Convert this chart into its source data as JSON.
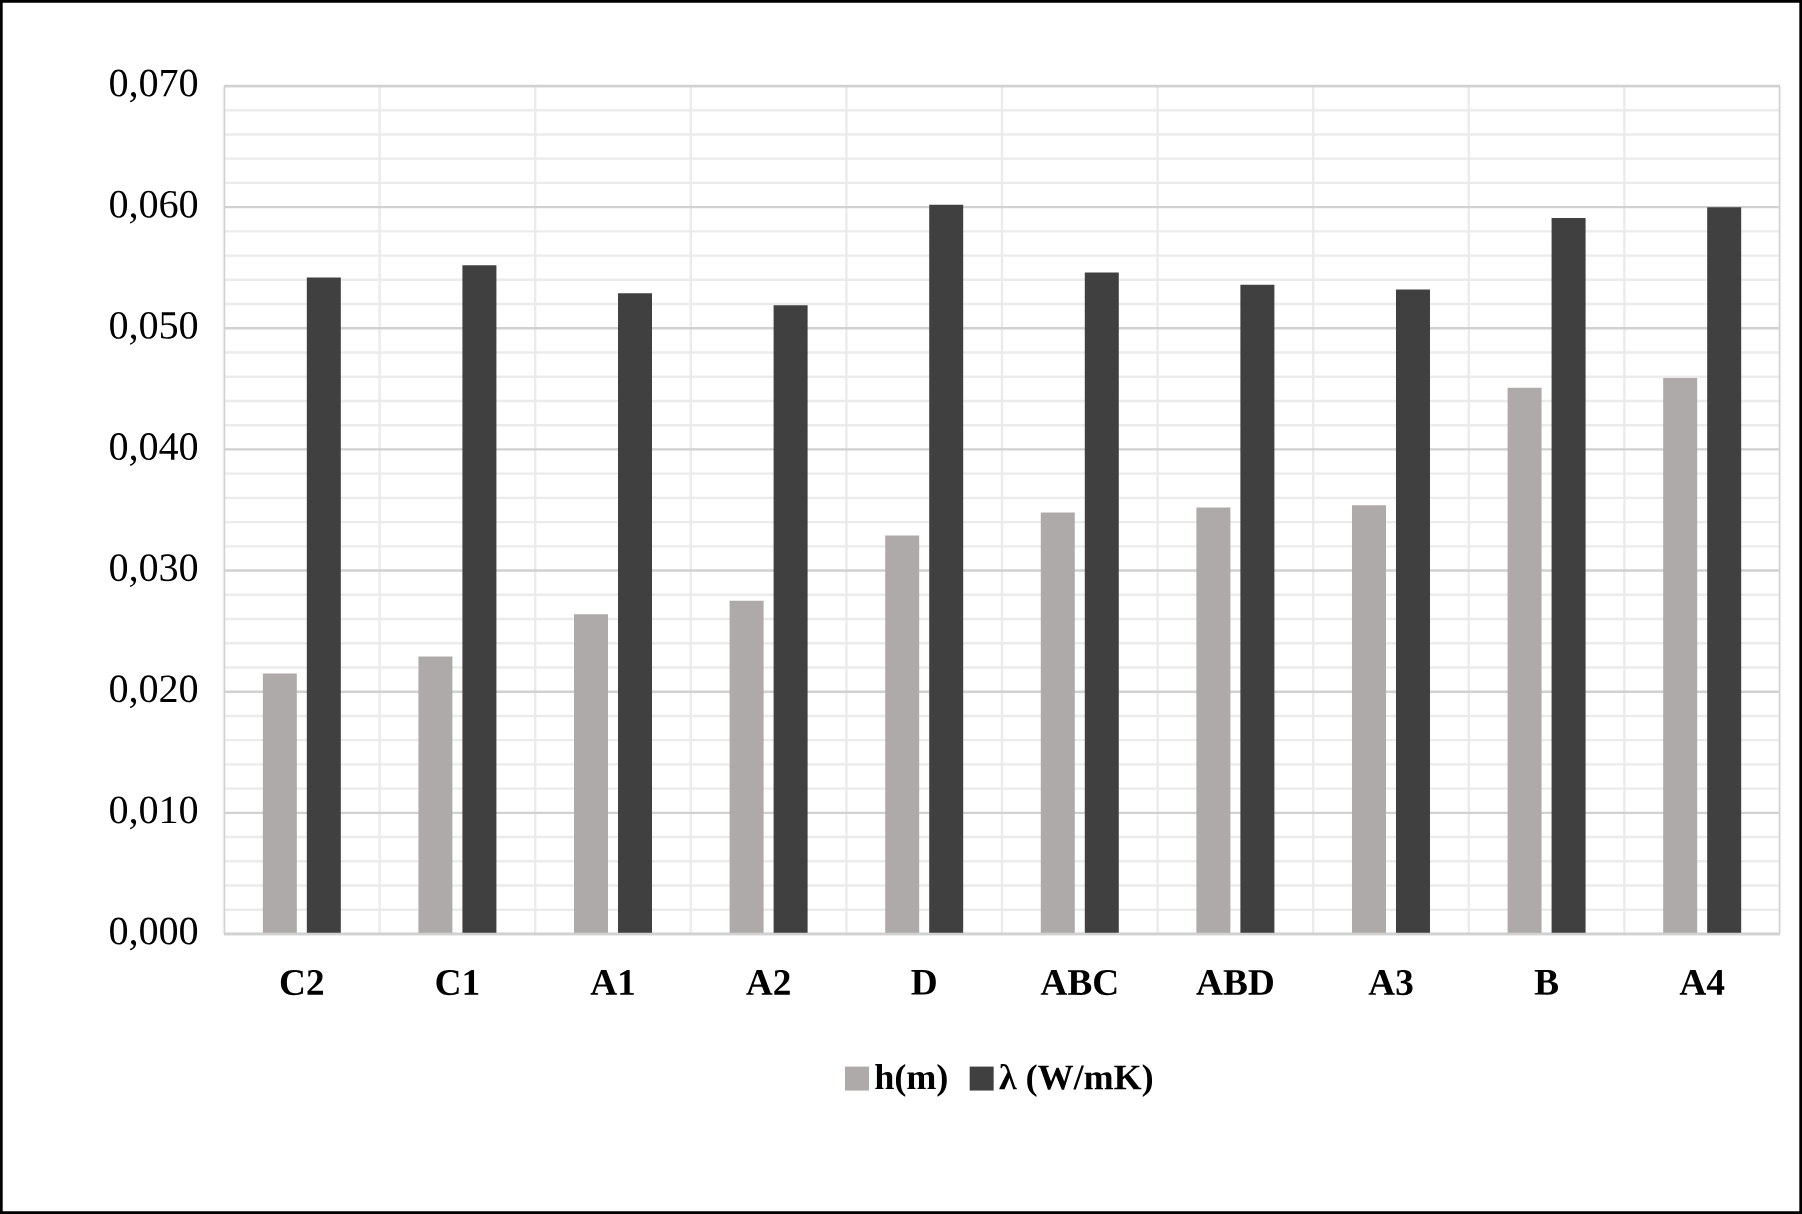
{
  "chart_data": {
    "type": "bar",
    "categories": [
      "C2",
      "C1",
      "A1",
      "A2",
      "D",
      "ABC",
      "ABD",
      "A3",
      "B",
      "A4"
    ],
    "series": [
      {
        "name": "h(m)",
        "color": "#aeaaaa",
        "values": [
          0.0215,
          0.0229,
          0.0264,
          0.0275,
          0.0329,
          0.0348,
          0.0352,
          0.0354,
          0.0451,
          0.0459
        ]
      },
      {
        "name": "λ (W/mK)",
        "color": "#404040",
        "values": [
          0.0542,
          0.0552,
          0.0529,
          0.0519,
          0.0602,
          0.0546,
          0.0536,
          0.0532,
          0.0591,
          0.06
        ]
      }
    ],
    "ylim": [
      0,
      0.07
    ],
    "yticks": [
      {
        "value": 0,
        "label": "0,000"
      },
      {
        "value": 0.01,
        "label": "0,010"
      },
      {
        "value": 0.02,
        "label": "0,020"
      },
      {
        "value": 0.03,
        "label": "0,030"
      },
      {
        "value": 0.04,
        "label": "0,040"
      },
      {
        "value": 0.05,
        "label": "0,050"
      },
      {
        "value": 0.06,
        "label": "0,060"
      },
      {
        "value": 0.07,
        "label": "0,070"
      }
    ],
    "grid": true,
    "legend": "bottom"
  }
}
